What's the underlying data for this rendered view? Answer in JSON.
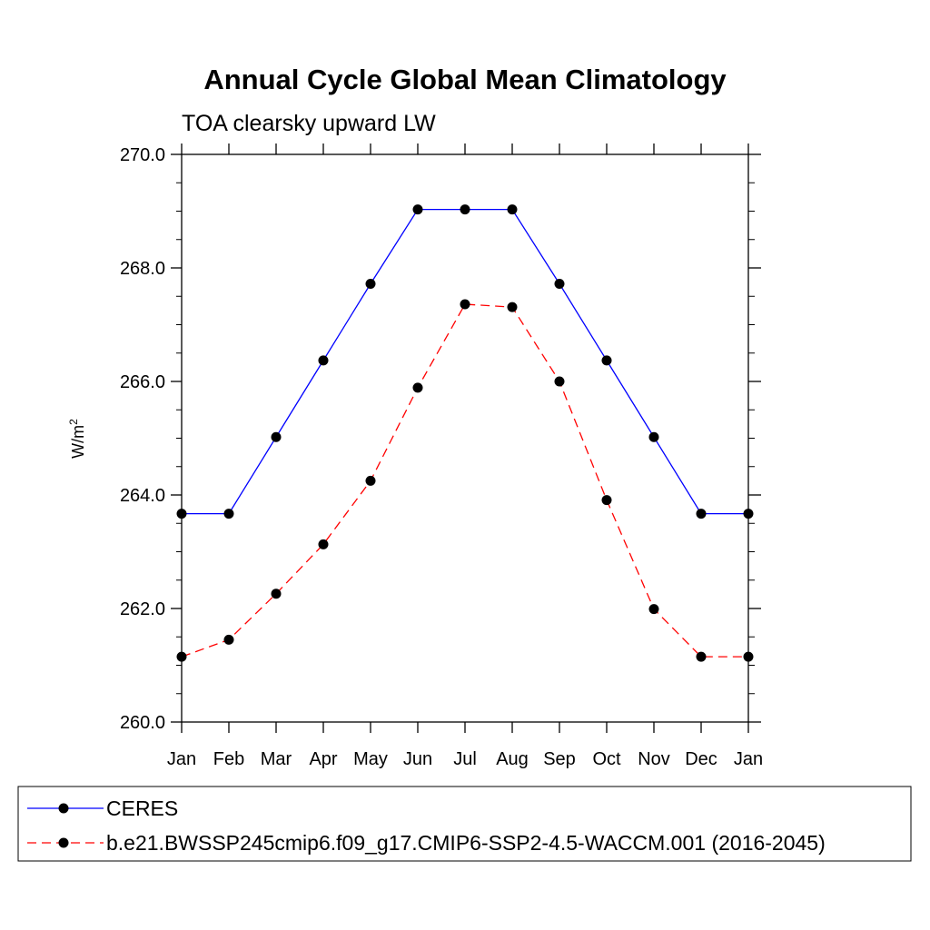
{
  "chart_data": {
    "type": "line",
    "title": "Annual Cycle Global Mean Climatology",
    "subtitle": "TOA clearsky upward LW",
    "ylabel": "W/m",
    "ylabel_superscript": "2",
    "xlabel": "",
    "categories": [
      "Jan",
      "Feb",
      "Mar",
      "Apr",
      "May",
      "Jun",
      "Jul",
      "Aug",
      "Sep",
      "Oct",
      "Nov",
      "Dec",
      "Jan"
    ],
    "ylim": [
      260.0,
      270.0
    ],
    "yticks": [
      "260.0",
      "262.0",
      "264.0",
      "266.0",
      "268.0",
      "270.0"
    ],
    "grid": false,
    "legend_position": "bottom",
    "series": [
      {
        "name": "CERES",
        "color": "#0000ff",
        "style": "solid",
        "values": [
          263.67,
          263.67,
          265.02,
          266.37,
          267.72,
          269.03,
          269.03,
          269.03,
          267.72,
          266.37,
          265.02,
          263.67,
          263.67
        ]
      },
      {
        "name": "b.e21.BWSSP245cmip6.f09_g17.CMIP6-SSP2-4.5-WACCM.001 (2016-2045)",
        "color": "#ff0000",
        "style": "dashed",
        "values": [
          261.15,
          261.45,
          262.26,
          263.13,
          264.25,
          265.89,
          267.36,
          267.31,
          266.0,
          263.91,
          261.99,
          261.15,
          261.15
        ]
      }
    ]
  }
}
